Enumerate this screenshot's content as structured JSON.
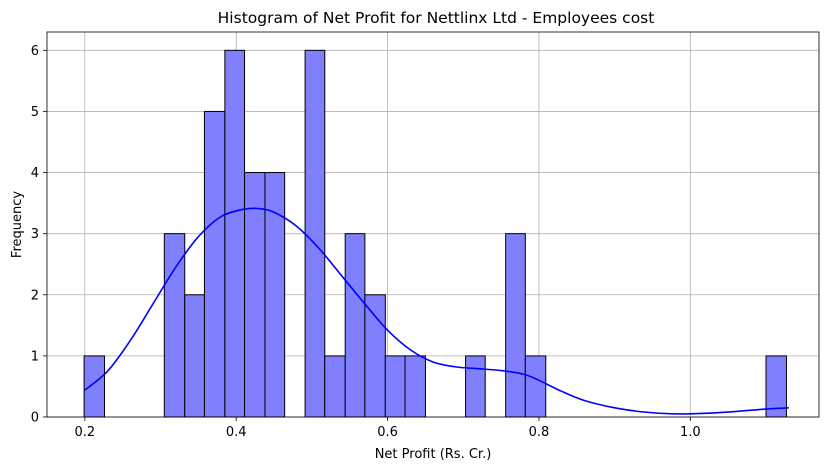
{
  "chart_data": {
    "type": "bar",
    "title": "Histogram of Net Profit for Nettlinx Ltd - Employees cost",
    "xlabel": "Net Profit (Rs. Cr.)",
    "ylabel": "Frequency",
    "xlim": [
      0.15,
      1.17
    ],
    "ylim": [
      0,
      6.3
    ],
    "grid": true,
    "bar_color": "#8080ff",
    "bar_edge_color": "#000000",
    "kde_color": "#0000ff",
    "x_ticks": [
      0.2,
      0.4,
      0.6,
      0.8,
      1.0
    ],
    "x_tick_labels": [
      "0.2",
      "0.4",
      "0.6",
      "0.8",
      "1.0"
    ],
    "y_ticks": [
      0,
      1,
      2,
      3,
      4,
      5,
      6
    ],
    "y_tick_labels": [
      "0",
      "1",
      "2",
      "3",
      "4",
      "5",
      "6"
    ],
    "bins": [
      {
        "x0": 0.199,
        "x1": 0.226,
        "count": 1
      },
      {
        "x0": 0.226,
        "x1": 0.252,
        "count": 0
      },
      {
        "x0": 0.252,
        "x1": 0.279,
        "count": 0
      },
      {
        "x0": 0.279,
        "x1": 0.305,
        "count": 0
      },
      {
        "x0": 0.305,
        "x1": 0.332,
        "count": 3
      },
      {
        "x0": 0.332,
        "x1": 0.358,
        "count": 2
      },
      {
        "x0": 0.358,
        "x1": 0.385,
        "count": 5
      },
      {
        "x0": 0.385,
        "x1": 0.411,
        "count": 6
      },
      {
        "x0": 0.411,
        "x1": 0.438,
        "count": 4
      },
      {
        "x0": 0.438,
        "x1": 0.464,
        "count": 4
      },
      {
        "x0": 0.464,
        "x1": 0.491,
        "count": 0
      },
      {
        "x0": 0.491,
        "x1": 0.517,
        "count": 6
      },
      {
        "x0": 0.517,
        "x1": 0.544,
        "count": 1
      },
      {
        "x0": 0.544,
        "x1": 0.57,
        "count": 3
      },
      {
        "x0": 0.57,
        "x1": 0.597,
        "count": 2
      },
      {
        "x0": 0.597,
        "x1": 0.623,
        "count": 1
      },
      {
        "x0": 0.623,
        "x1": 0.65,
        "count": 1
      },
      {
        "x0": 0.65,
        "x1": 0.676,
        "count": 0
      },
      {
        "x0": 0.676,
        "x1": 0.703,
        "count": 0
      },
      {
        "x0": 0.703,
        "x1": 0.729,
        "count": 1
      },
      {
        "x0": 0.729,
        "x1": 0.756,
        "count": 0
      },
      {
        "x0": 0.756,
        "x1": 0.782,
        "count": 3
      },
      {
        "x0": 0.782,
        "x1": 0.809,
        "count": 1
      },
      {
        "x0": 0.809,
        "x1": 0.835,
        "count": 0
      },
      {
        "x0": 0.835,
        "x1": 0.862,
        "count": 0
      },
      {
        "x0": 0.862,
        "x1": 0.888,
        "count": 0
      },
      {
        "x0": 0.888,
        "x1": 0.915,
        "count": 0
      },
      {
        "x0": 0.915,
        "x1": 0.941,
        "count": 0
      },
      {
        "x0": 0.941,
        "x1": 0.968,
        "count": 0
      },
      {
        "x0": 0.968,
        "x1": 0.994,
        "count": 0
      },
      {
        "x0": 0.994,
        "x1": 1.021,
        "count": 0
      },
      {
        "x0": 1.021,
        "x1": 1.047,
        "count": 0
      },
      {
        "x0": 1.047,
        "x1": 1.074,
        "count": 0
      },
      {
        "x0": 1.074,
        "x1": 1.1,
        "count": 0
      },
      {
        "x0": 1.1,
        "x1": 1.127,
        "count": 1
      }
    ],
    "kde_curve": {
      "x": [
        0.2,
        0.23,
        0.26,
        0.29,
        0.32,
        0.35,
        0.38,
        0.41,
        0.43,
        0.45,
        0.48,
        0.51,
        0.54,
        0.57,
        0.6,
        0.63,
        0.66,
        0.69,
        0.72,
        0.75,
        0.78,
        0.8,
        0.83,
        0.86,
        0.9,
        0.94,
        0.98,
        1.02,
        1.06,
        1.1,
        1.13
      ],
      "y": [
        0.44,
        0.75,
        1.25,
        1.85,
        2.45,
        2.95,
        3.28,
        3.4,
        3.41,
        3.35,
        3.12,
        2.75,
        2.3,
        1.85,
        1.42,
        1.1,
        0.9,
        0.82,
        0.79,
        0.76,
        0.7,
        0.6,
        0.42,
        0.27,
        0.15,
        0.08,
        0.05,
        0.06,
        0.09,
        0.13,
        0.15
      ]
    }
  }
}
